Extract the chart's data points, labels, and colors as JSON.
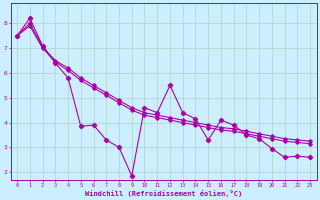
{
  "title": "",
  "xlabel": "Windchill (Refroidissement éolien,°C)",
  "ylabel": "",
  "bg_color": "#cceeff",
  "grid_color": "#b0d8cc",
  "line_color": "#aa00aa",
  "xlim": [
    -0.5,
    23.5
  ],
  "ylim": [
    1.7,
    8.8
  ],
  "yticks": [
    2,
    3,
    4,
    5,
    6,
    7,
    8
  ],
  "xticks": [
    0,
    1,
    2,
    3,
    4,
    5,
    6,
    7,
    8,
    9,
    10,
    11,
    12,
    13,
    14,
    15,
    16,
    17,
    18,
    19,
    20,
    21,
    22,
    23
  ],
  "series1_x": [
    0,
    1,
    2,
    3,
    4,
    5,
    6,
    7,
    8,
    9,
    10,
    11,
    12,
    13,
    14,
    15,
    16,
    17,
    18,
    19,
    20,
    21,
    22,
    23
  ],
  "series1_y": [
    7.5,
    8.2,
    7.1,
    6.4,
    5.8,
    3.85,
    3.9,
    3.3,
    3.0,
    1.85,
    4.6,
    4.4,
    5.5,
    4.4,
    4.15,
    3.3,
    4.1,
    3.9,
    3.5,
    3.35,
    2.95,
    2.6,
    2.65,
    2.6
  ],
  "series2_x": [
    0,
    1,
    2,
    3,
    4,
    5,
    6,
    7,
    8,
    9,
    10,
    11,
    12,
    13,
    14,
    15,
    16,
    17,
    18,
    19,
    20,
    21,
    22,
    23
  ],
  "series2_y": [
    7.5,
    8.0,
    7.05,
    6.5,
    6.2,
    5.8,
    5.5,
    5.2,
    4.9,
    4.6,
    4.4,
    4.3,
    4.2,
    4.1,
    4.0,
    3.9,
    3.8,
    3.75,
    3.65,
    3.55,
    3.45,
    3.35,
    3.3,
    3.25
  ],
  "series3_x": [
    0,
    1,
    2,
    3,
    4,
    5,
    6,
    7,
    8,
    9,
    10,
    11,
    12,
    13,
    14,
    15,
    16,
    17,
    18,
    19,
    20,
    21,
    22,
    23
  ],
  "series3_y": [
    7.5,
    7.9,
    7.0,
    6.45,
    6.1,
    5.7,
    5.4,
    5.1,
    4.8,
    4.5,
    4.3,
    4.2,
    4.1,
    4.0,
    3.9,
    3.8,
    3.7,
    3.65,
    3.55,
    3.45,
    3.35,
    3.25,
    3.2,
    3.15
  ]
}
